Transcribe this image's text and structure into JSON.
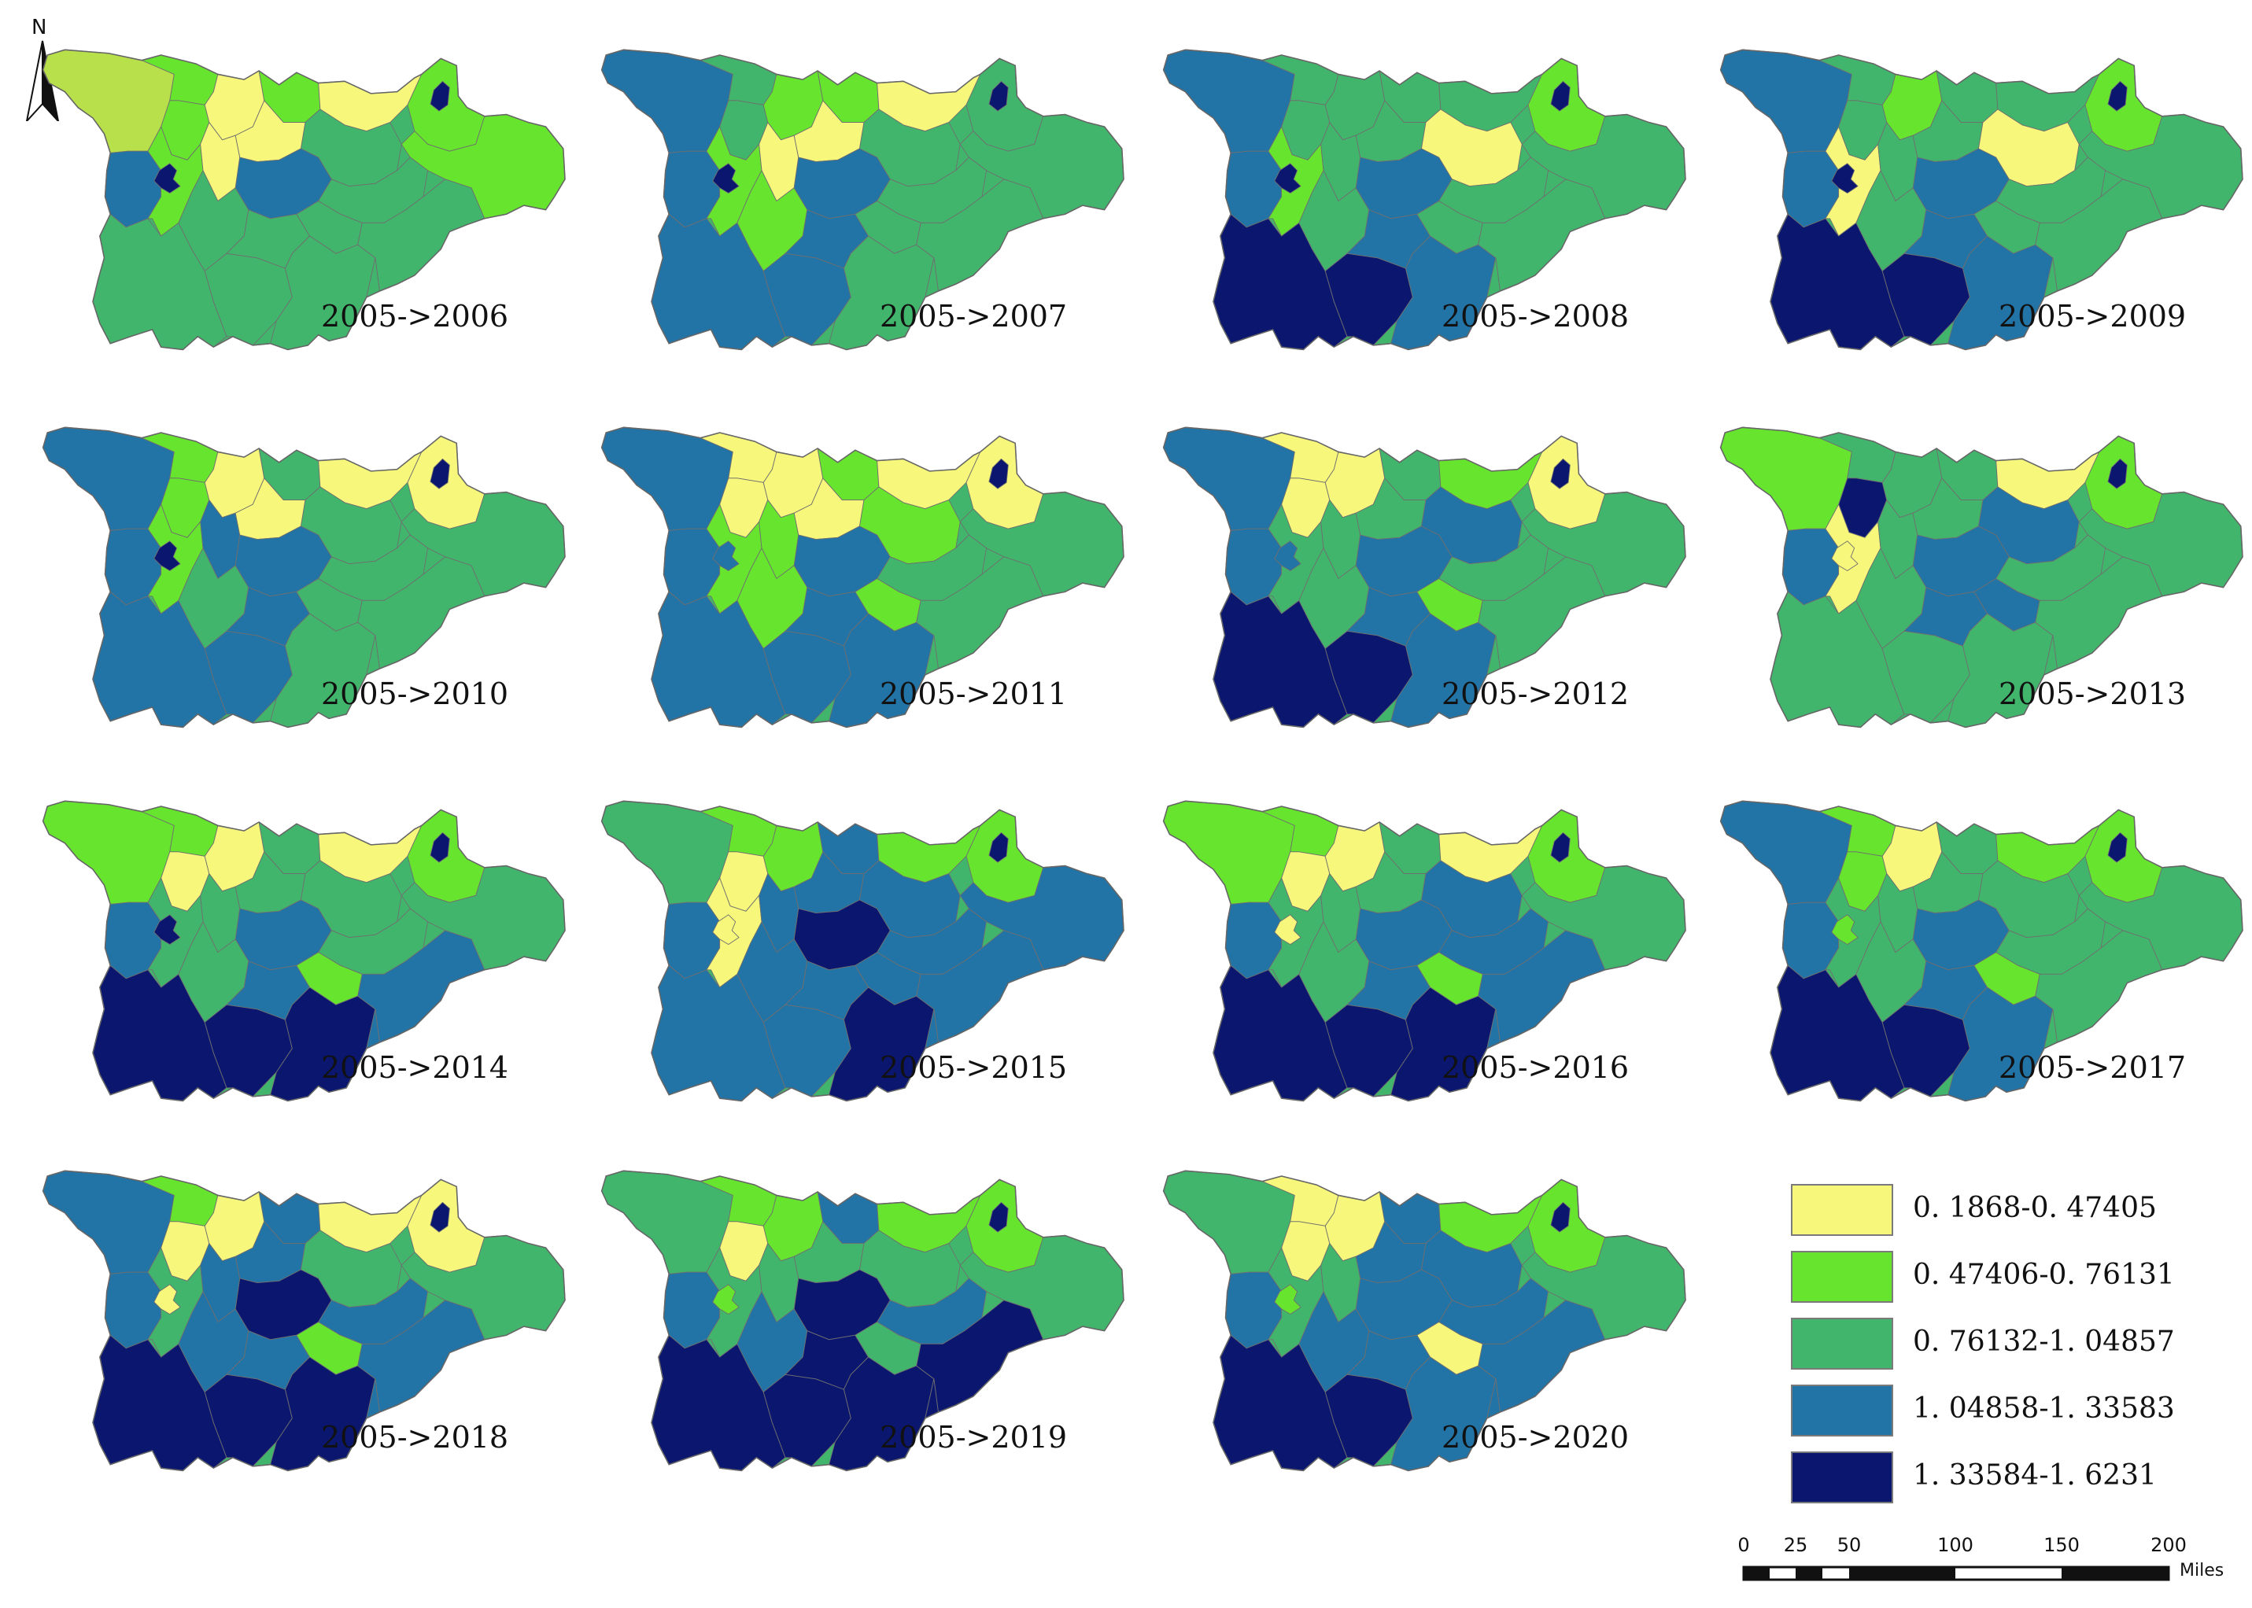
{
  "north_arrow": {
    "label": "N"
  },
  "panels": [
    {
      "label": "2005->2006",
      "fill": [
        "#b8e04a",
        "#67e52e",
        "#67e52e",
        "#f7f77c",
        "#67e52e",
        "#f7f77c",
        "#f7f77c",
        "#2273a6",
        "#67e52e",
        "#67e52e",
        "#2273a6",
        "#41b56c",
        "#f7f77c",
        "#41b56c",
        "#41b56c",
        "#41b56c",
        "#41b56c",
        "#67e52e",
        "#41b56c",
        "#41b56c",
        "#41b56c",
        "#41b56c",
        "#41b56c",
        "#0b176f",
        "#0b176f"
      ]
    },
    {
      "label": "2005->2007",
      "fill": [
        "#2273a6",
        "#41b56c",
        "#41b56c",
        "#67e52e",
        "#67e52e",
        "#f7f77c",
        "#f7f77c",
        "#2273a6",
        "#67e52e",
        "#41b56c",
        "#2273a6",
        "#41b56c",
        "#f7f77c",
        "#2273a6",
        "#67e52e",
        "#2273a6",
        "#2273a6",
        "#41b56c",
        "#41b56c",
        "#41b56c",
        "#41b56c",
        "#41b56c",
        "#41b56c",
        "#0b176f",
        "#0b176f"
      ]
    },
    {
      "label": "2005->2008",
      "fill": [
        "#2273a6",
        "#41b56c",
        "#41b56c",
        "#41b56c",
        "#41b56c",
        "#41b56c",
        "#41b56c",
        "#2273a6",
        "#67e52e",
        "#67e52e",
        "#2273a6",
        "#f7f77c",
        "#41b56c",
        "#0b176f",
        "#41b56c",
        "#0b176f",
        "#2273a6",
        "#41b56c",
        "#41b56c",
        "#41b56c",
        "#2273a6",
        "#41b56c",
        "#41b56c",
        "#0b176f",
        "#0b176f"
      ]
    },
    {
      "label": "2005->2009",
      "fill": [
        "#2273a6",
        "#41b56c",
        "#41b56c",
        "#67e52e",
        "#41b56c",
        "#41b56c",
        "#41b56c",
        "#2273a6",
        "#f7f77c",
        "#67e52e",
        "#2273a6",
        "#f7f77c",
        "#41b56c",
        "#0b176f",
        "#41b56c",
        "#0b176f",
        "#2273a6",
        "#41b56c",
        "#41b56c",
        "#41b56c",
        "#2273a6",
        "#41b56c",
        "#41b56c",
        "#0b176f",
        "#0b176f"
      ]
    },
    {
      "label": "2005->2010",
      "fill": [
        "#2273a6",
        "#67e52e",
        "#67e52e",
        "#f7f77c",
        "#41b56c",
        "#f7f77c",
        "#f7f77c",
        "#2273a6",
        "#67e52e",
        "#f7f77c",
        "#2273a6",
        "#41b56c",
        "#2273a6",
        "#2273a6",
        "#41b56c",
        "#2273a6",
        "#2273a6",
        "#41b56c",
        "#41b56c",
        "#41b56c",
        "#41b56c",
        "#41b56c",
        "#41b56c",
        "#0b176f",
        "#0b176f"
      ]
    },
    {
      "label": "2005->2011",
      "fill": [
        "#2273a6",
        "#f7f77c",
        "#f7f77c",
        "#f7f77c",
        "#67e52e",
        "#f7f77c",
        "#f7f77c",
        "#2273a6",
        "#67e52e",
        "#f7f77c",
        "#2273a6",
        "#67e52e",
        "#67e52e",
        "#2273a6",
        "#67e52e",
        "#2273a6",
        "#2273a6",
        "#41b56c",
        "#41b56c",
        "#67e52e",
        "#2273a6",
        "#41b56c",
        "#41b56c",
        "#0b176f",
        "#2273a6"
      ]
    },
    {
      "label": "2005->2012",
      "fill": [
        "#2273a6",
        "#f7f77c",
        "#f7f77c",
        "#f7f77c",
        "#41b56c",
        "#67e52e",
        "#41b56c",
        "#2273a6",
        "#41b56c",
        "#f7f77c",
        "#2273a6",
        "#2273a6",
        "#41b56c",
        "#0b176f",
        "#41b56c",
        "#0b176f",
        "#2273a6",
        "#41b56c",
        "#41b56c",
        "#67e52e",
        "#2273a6",
        "#41b56c",
        "#41b56c",
        "#0b176f",
        "#2273a6"
      ]
    },
    {
      "label": "2005->2013",
      "fill": [
        "#67e52e",
        "#41b56c",
        "#0b176f",
        "#41b56c",
        "#41b56c",
        "#f7f77c",
        "#41b56c",
        "#2273a6",
        "#f7f77c",
        "#67e52e",
        "#2273a6",
        "#2273a6",
        "#41b56c",
        "#41b56c",
        "#41b56c",
        "#41b56c",
        "#2273a6",
        "#41b56c",
        "#41b56c",
        "#2273a6",
        "#41b56c",
        "#41b56c",
        "#41b56c",
        "#0b176f",
        "#f7f77c"
      ]
    },
    {
      "label": "2005->2014",
      "fill": [
        "#67e52e",
        "#67e52e",
        "#f7f77c",
        "#f7f77c",
        "#41b56c",
        "#f7f77c",
        "#41b56c",
        "#2273a6",
        "#41b56c",
        "#67e52e",
        "#2273a6",
        "#41b56c",
        "#41b56c",
        "#0b176f",
        "#41b56c",
        "#0b176f",
        "#2273a6",
        "#41b56c",
        "#41b56c",
        "#67e52e",
        "#0b176f",
        "#2273a6",
        "#2273a6",
        "#0b176f",
        "#0b176f"
      ]
    },
    {
      "label": "2005->2015",
      "fill": [
        "#41b56c",
        "#67e52e",
        "#f7f77c",
        "#67e52e",
        "#2273a6",
        "#67e52e",
        "#2273a6",
        "#2273a6",
        "#f7f77c",
        "#67e52e",
        "#0b176f",
        "#2273a6",
        "#2273a6",
        "#2273a6",
        "#2273a6",
        "#2273a6",
        "#2273a6",
        "#2273a6",
        "#2273a6",
        "#2273a6",
        "#0b176f",
        "#2273a6",
        "#2273a6",
        "#0b176f",
        "#f7f77c"
      ]
    },
    {
      "label": "2005->2016",
      "fill": [
        "#67e52e",
        "#67e52e",
        "#f7f77c",
        "#f7f77c",
        "#41b56c",
        "#f7f77c",
        "#41b56c",
        "#2273a6",
        "#41b56c",
        "#67e52e",
        "#2273a6",
        "#2273a6",
        "#41b56c",
        "#0b176f",
        "#41b56c",
        "#0b176f",
        "#2273a6",
        "#41b56c",
        "#2273a6",
        "#67e52e",
        "#0b176f",
        "#2273a6",
        "#2273a6",
        "#0b176f",
        "#f7f77c"
      ]
    },
    {
      "label": "2005->2017",
      "fill": [
        "#2273a6",
        "#67e52e",
        "#67e52e",
        "#f7f77c",
        "#41b56c",
        "#67e52e",
        "#41b56c",
        "#2273a6",
        "#41b56c",
        "#67e52e",
        "#2273a6",
        "#41b56c",
        "#41b56c",
        "#0b176f",
        "#41b56c",
        "#0b176f",
        "#2273a6",
        "#41b56c",
        "#41b56c",
        "#67e52e",
        "#2273a6",
        "#41b56c",
        "#41b56c",
        "#0b176f",
        "#67e52e"
      ]
    },
    {
      "label": "2005->2018",
      "fill": [
        "#2273a6",
        "#67e52e",
        "#f7f77c",
        "#f7f77c",
        "#2273a6",
        "#f7f77c",
        "#2273a6",
        "#2273a6",
        "#41b56c",
        "#f7f77c",
        "#0b176f",
        "#41b56c",
        "#2273a6",
        "#0b176f",
        "#2273a6",
        "#0b176f",
        "#2273a6",
        "#41b56c",
        "#2273a6",
        "#67e52e",
        "#0b176f",
        "#2273a6",
        "#2273a6",
        "#0b176f",
        "#f7f77c"
      ]
    },
    {
      "label": "2005->2019",
      "fill": [
        "#41b56c",
        "#67e52e",
        "#f7f77c",
        "#67e52e",
        "#2273a6",
        "#67e52e",
        "#41b56c",
        "#2273a6",
        "#41b56c",
        "#67e52e",
        "#0b176f",
        "#41b56c",
        "#41b56c",
        "#0b176f",
        "#2273a6",
        "#0b176f",
        "#0b176f",
        "#41b56c",
        "#2273a6",
        "#41b56c",
        "#0b176f",
        "#0b176f",
        "#0b176f",
        "#0b176f",
        "#67e52e"
      ]
    },
    {
      "label": "2005->2020",
      "fill": [
        "#41b56c",
        "#f7f77c",
        "#f7f77c",
        "#f7f77c",
        "#2273a6",
        "#67e52e",
        "#2273a6",
        "#2273a6",
        "#41b56c",
        "#67e52e",
        "#2273a6",
        "#2273a6",
        "#41b56c",
        "#0b176f",
        "#2273a6",
        "#0b176f",
        "#2273a6",
        "#41b56c",
        "#2273a6",
        "#f7f77c",
        "#2273a6",
        "#2273a6",
        "#2273a6",
        "#0b176f",
        "#67e52e"
      ]
    }
  ],
  "legend": [
    {
      "label": "0. 1868-0. 47405",
      "color": "#f7f77c"
    },
    {
      "label": "0. 47406-0. 76131",
      "color": "#67e52e"
    },
    {
      "label": "0. 76132-1. 04857",
      "color": "#41b56c"
    },
    {
      "label": "1. 04858-1. 33583",
      "color": "#2273a6"
    },
    {
      "label": "1. 33584-1. 6231",
      "color": "#0b176f"
    }
  ],
  "scale_bar": {
    "ticks": [
      "0",
      "25",
      "50",
      "100",
      "150",
      "200"
    ],
    "unit": "Miles"
  }
}
